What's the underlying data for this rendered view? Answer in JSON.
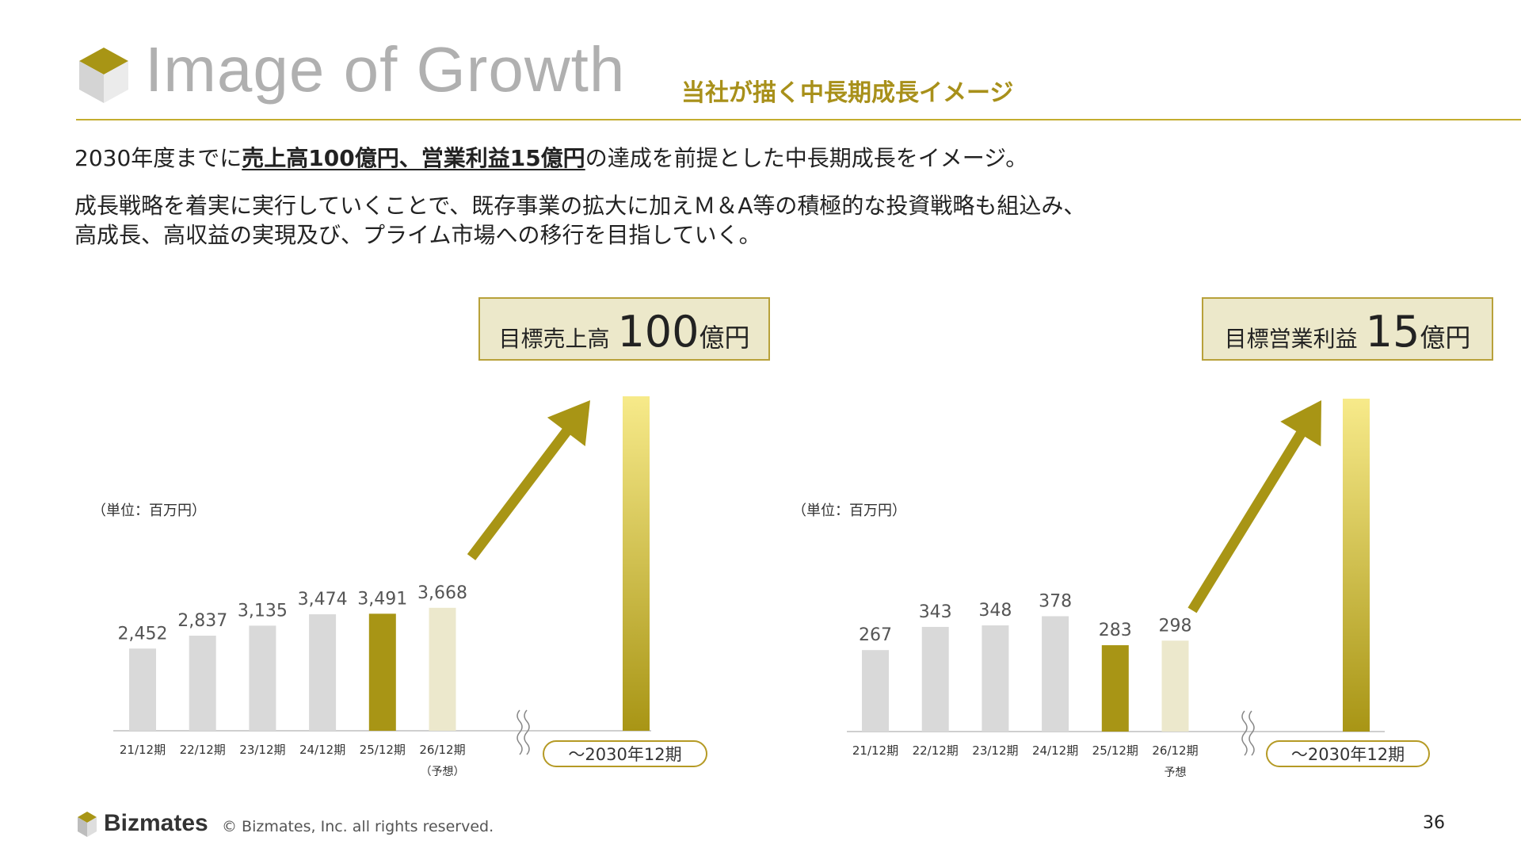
{
  "header": {
    "title": "Image of Growth",
    "subtitle": "当社が描く中長期成長イメージ"
  },
  "body": {
    "line1_prefix": "2030年度までに",
    "line1_highlight": "売上高100億円、営業利益15億円",
    "line1_suffix": "の達成を前提とした中長期成長をイメージ。",
    "line2": "成長戦略を着実に実行していくことで、既存事業の拡大に加えＭ＆A等の積極的な投資戦略も組込み、",
    "line3": "高成長、高収益の実現及び、プライム市場への移行を目指していく。"
  },
  "targets": {
    "left": {
      "label": "目標売上高",
      "value": "100",
      "unit": "億円"
    },
    "right": {
      "label": "目標営業利益",
      "value": "15",
      "unit": "億円"
    }
  },
  "colors": {
    "past": "#d9d9d9",
    "current": "#a89515",
    "forecast": "#ece8cc",
    "target_top": "#f7ea8a",
    "target_bottom": "#a89515",
    "arrow": "#a89515"
  },
  "chart_data": [
    {
      "type": "bar",
      "unit_label": "（単位：百万円）",
      "categories": [
        "21/12期",
        "22/12期",
        "23/12期",
        "24/12期",
        "25/12期",
        "26/12期"
      ],
      "category_sublabels": [
        "",
        "",
        "",
        "",
        "",
        "（予想）"
      ],
      "values": [
        2452,
        2837,
        3135,
        3474,
        3491,
        3668
      ],
      "value_labels": [
        "2,452",
        "2,837",
        "3,135",
        "3,474",
        "3,491",
        "3,668"
      ],
      "bar_styles": [
        "past",
        "past",
        "past",
        "past",
        "current",
        "forecast"
      ],
      "target_category": "～2030年12期",
      "target_value": 10000,
      "ylim": [
        0,
        10000
      ]
    },
    {
      "type": "bar",
      "unit_label": "（単位：百万円）",
      "categories": [
        "21/12期",
        "22/12期",
        "23/12期",
        "24/12期",
        "25/12期",
        "26/12期"
      ],
      "category_sublabels": [
        "",
        "",
        "",
        "",
        "",
        "予想"
      ],
      "values": [
        267,
        343,
        348,
        378,
        283,
        298
      ],
      "value_labels": [
        "267",
        "343",
        "348",
        "378",
        "283",
        "298"
      ],
      "bar_styles": [
        "past",
        "past",
        "past",
        "past",
        "current",
        "forecast"
      ],
      "target_category": "～2030年12期",
      "target_value": 1500,
      "ylim": [
        0,
        1500
      ]
    }
  ],
  "footer": {
    "brand": "Bizmates",
    "copyright": "© Bizmates, Inc. all rights reserved.",
    "page": "36"
  }
}
